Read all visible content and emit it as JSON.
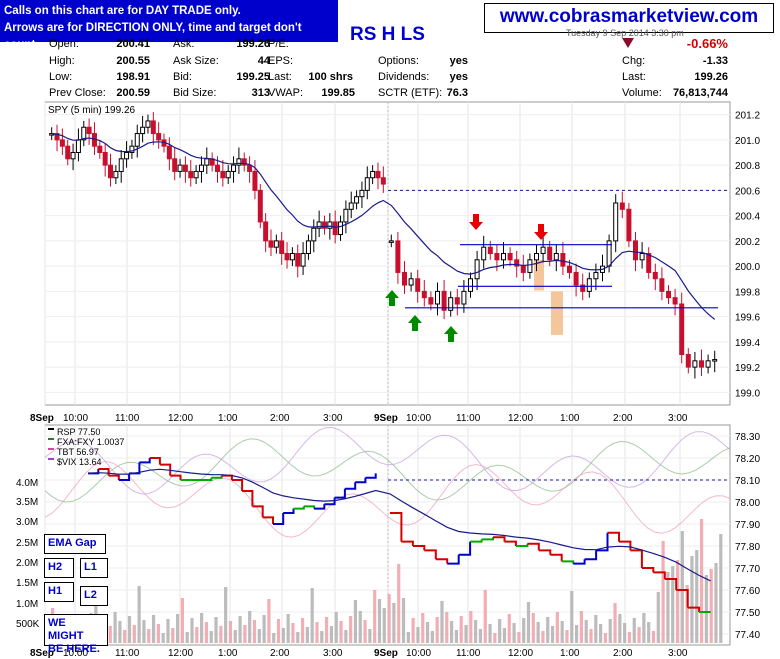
{
  "callout": {
    "line1": "Calls on this chart are for DAY TRADE only.",
    "line2": "Arrows are for DIRECTION ONLY, time and target don't count."
  },
  "brand": "www.cobrasmarketview.com",
  "header": {
    "ticker_fragment": "RS H LS",
    "top_right_fragment": "Tuesday  9 Sep 2014  3:30 pm",
    "change_pct": "-0.66%"
  },
  "quote": {
    "open_label": "Open:",
    "open": "200.41",
    "high_label": "High:",
    "high": "200.55",
    "low_label": "Low:",
    "low": "198.91",
    "prevclose_label": "Prev Close:",
    "prevclose": "200.59",
    "ask_label": "Ask:",
    "ask": "199.26",
    "asksize_label": "Ask Size:",
    "asksize": "44",
    "bid_label": "Bid:",
    "bid": "199.25",
    "bidsize_label": "Bid Size:",
    "bidsize": "313",
    "pe_label": "P/E:",
    "eps_label": "EPS:",
    "last_label": "Last:",
    "last_shrs": "100 shrs",
    "vwap_label": "VWAP:",
    "vwap": "199.85",
    "options_label": "Options:",
    "options": "yes",
    "dividends_label": "Dividends:",
    "dividends": "yes",
    "sctr_label": "SCTR (ETF):",
    "sctr": "76.3",
    "chg_label": "Chg:",
    "chg": "-1.33",
    "last2_label": "Last:",
    "last2": "199.26",
    "volume_label": "Volume:",
    "volume": "76,813,744"
  },
  "annotation_boxes": {
    "ema_gap": "EMA Gap",
    "h2": "H2",
    "l1": "L1",
    "h1": "H1",
    "l2": "L2",
    "note_line1": "WE MIGHT",
    "note_line2": "BE HERE."
  },
  "colors": {
    "up_candle": "#000000",
    "down_candle": "#c8102e",
    "ema_line": "#1a1a8c",
    "resistance_line": "#0000cc",
    "arrow_down": "#e60000",
    "arrow_up": "#008a00",
    "highlight_bar": "#f4c090",
    "rsp_up": "#0000cc",
    "rsp_flat": "#00aa00",
    "rsp_down": "#d40000",
    "fxafxy": "#8fbc8f",
    "tbt": "#f0a0c0",
    "vix": "#c8a0e0",
    "volume_up": "#b0b0b0",
    "volume_down": "#f0a0a8"
  },
  "chart_data": [
    {
      "type": "candlestick",
      "title": "SPY (5 min) 199.26",
      "ylim": [
        198.9,
        201.3
      ],
      "yticks": [
        "201.2",
        "201.0",
        "200.8",
        "200.6",
        "200.4",
        "200.2",
        "200.0",
        "199.8",
        "199.6",
        "199.4",
        "199.2",
        "199.0"
      ],
      "xticks": [
        "8Sep",
        "10:00",
        "11:00",
        "12:00",
        "1:00",
        "2:00",
        "3:00",
        "9Sep",
        "10:00",
        "11:00",
        "12:00",
        "1:00",
        "2:00",
        "3:00"
      ],
      "dashed_level": 200.6,
      "resistance_lines": [
        {
          "from": "11:00",
          "to": "2:00",
          "value": 200.17
        },
        {
          "from": "11:00",
          "to": "2:00",
          "value": 199.84
        },
        {
          "from": "10:00",
          "to": "3:45",
          "value": 199.67
        }
      ],
      "close_series_day1": [
        201.05,
        201.0,
        200.95,
        200.85,
        200.9,
        201.0,
        201.1,
        201.05,
        200.95,
        200.9,
        200.8,
        200.7,
        200.75,
        200.85,
        200.9,
        200.95,
        201.05,
        201.1,
        201.15,
        201.05,
        201.0,
        200.95,
        200.85,
        200.75,
        200.8,
        200.75,
        200.7,
        200.75,
        200.8,
        200.85,
        200.8,
        200.75,
        200.7,
        200.75,
        200.8,
        200.85,
        200.8,
        200.75,
        200.6,
        200.35,
        200.2,
        200.15,
        200.2,
        200.1,
        200.05,
        200.1,
        200.0,
        200.1,
        200.2,
        200.3,
        200.35,
        200.3,
        200.35,
        200.25,
        200.35,
        200.45,
        200.5,
        200.55,
        200.6,
        200.7,
        200.75,
        200.7,
        200.65
      ],
      "close_series_day2": [
        200.2,
        199.95,
        199.85,
        199.9,
        199.8,
        199.75,
        199.7,
        199.8,
        199.65,
        199.75,
        199.7,
        199.8,
        199.9,
        200.05,
        200.15,
        200.1,
        200.05,
        200.1,
        200.05,
        200.0,
        199.95,
        200.05,
        200.1,
        200.15,
        200.05,
        200.1,
        200.0,
        199.95,
        199.85,
        199.8,
        199.9,
        199.95,
        200.0,
        200.2,
        200.5,
        200.45,
        200.2,
        200.05,
        200.1,
        199.95,
        199.9,
        199.8,
        199.75,
        199.7,
        199.3,
        199.2,
        199.25,
        199.2,
        199.25,
        199.26
      ],
      "arrows": [
        {
          "dir": "down",
          "time": "11:15",
          "value": 200.3
        },
        {
          "dir": "down",
          "time": "12:25",
          "value": 200.3
        },
        {
          "dir": "up",
          "time": "10:05",
          "value": 199.75
        },
        {
          "dir": "up",
          "time": "10:20",
          "value": 199.6
        },
        {
          "dir": "up",
          "time": "10:50",
          "value": 199.55
        }
      ]
    },
    {
      "type": "line",
      "title": "RSP 77.50",
      "ylim": [
        77.35,
        78.35
      ],
      "yticks": [
        "78.30",
        "78.20",
        "78.10",
        "78.00",
        "77.90",
        "77.80",
        "77.70",
        "77.60",
        "77.50",
        "77.40"
      ],
      "volume_ticks": [
        "4.0M",
        "3.5M",
        "3.0M",
        "2.5M",
        "2.0M",
        "1.5M",
        "1.0M",
        "500K"
      ],
      "series": [
        {
          "name": "RSP 77.50"
        },
        {
          "name": "FXA:FXY 1.0037"
        },
        {
          "name": "TBT 56.97"
        },
        {
          "name": "$VIX 13.64"
        }
      ],
      "dashed_level": 78.1,
      "xticks": [
        "8Sep",
        "10:00",
        "11:00",
        "12:00",
        "1:00",
        "2:00",
        "3:00",
        "9Sep",
        "10:00",
        "11:00",
        "12:00",
        "1:00",
        "2:00",
        "3:00"
      ]
    }
  ]
}
